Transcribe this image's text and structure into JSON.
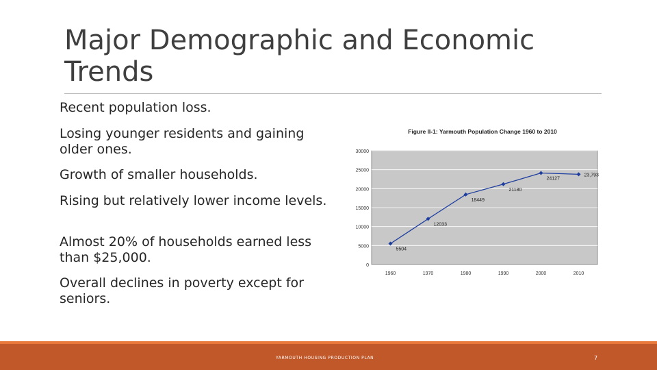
{
  "slide": {
    "title": "Major Demographic and Economic Trends",
    "bullets": [
      "Recent population loss.",
      "Losing younger residents and gaining older ones.",
      "Growth of smaller households.",
      "Rising but relatively lower income levels.",
      "Almost 20% of households earned less than $25,000.",
      "Overall declines in poverty except for seniors."
    ]
  },
  "footer": {
    "text": "YARMOUTH HOUSING PRODUCTION PLAN",
    "page_number": "7"
  },
  "colors": {
    "accent": "#c0582a",
    "line": "#1f3fa0",
    "plot_bg": "#c8c8c8"
  },
  "chart_data": {
    "type": "line",
    "title": "Figure II-1: Yarmouth Population Change 1960 to 2010",
    "categories": [
      "1960",
      "1970",
      "1980",
      "1990",
      "2000",
      "2010"
    ],
    "values": [
      5504,
      12033,
      18449,
      21180,
      24127,
      23793
    ],
    "data_labels": [
      "5504",
      "12033",
      "18449",
      "21180",
      "24127",
      "23,793"
    ],
    "y_ticks": [
      "0",
      "5000",
      "10000",
      "15000",
      "20000",
      "25000",
      "30000"
    ],
    "ylim": [
      0,
      30000
    ],
    "grid": true,
    "legend": "none"
  }
}
